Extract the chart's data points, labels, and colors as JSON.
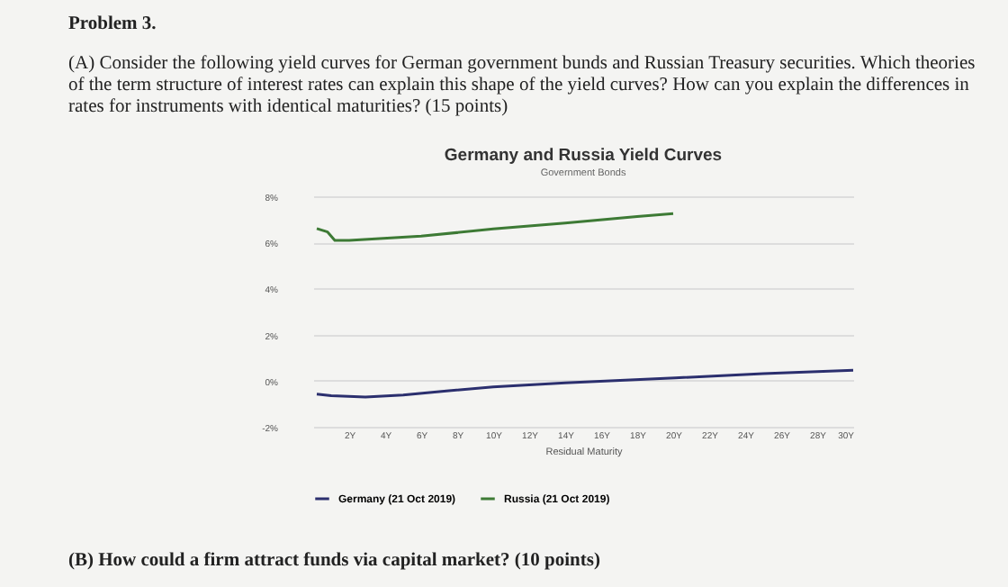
{
  "chart_data": {
    "type": "line",
    "title": "Germany and Russia Yield Curves",
    "subtitle": "Government Bonds",
    "xlabel": "Residual Maturity",
    "annotations": [
      "Problem 3.",
      "(A) Consider the following yield curves for German government bunds and Russian Treasury securities. Which theories of the term structure of interest rates can explain this shape of the yield curves? How can you explain the differences in rates for instruments with identical maturities? (15 points)",
      "(B) How could a firm attract funds via capital market? (10 points)"
    ],
    "series": [
      {
        "name": "Germany (21 Oct 2019)",
        "color": "#2b2f6e",
        "x": [
          0.2,
          1,
          2.9,
          5,
          7.4,
          10,
          14,
          20.1,
          25,
          30
        ],
        "values": [
          -0.58,
          -0.65,
          -0.71,
          -0.62,
          -0.45,
          -0.27,
          -0.1,
          0.12,
          0.3,
          0.45
        ]
      },
      {
        "name": "Russia (21 Oct 2019)",
        "color": "#3d7a35",
        "x": [
          0.2,
          0.8,
          1.2,
          2,
          6,
          10,
          14,
          18,
          20
        ],
        "values": [
          6.6,
          6.45,
          6.09,
          6.09,
          6.27,
          6.58,
          6.84,
          7.12,
          7.25
        ]
      }
    ],
    "xlim": [
      0,
      30
    ],
    "xticks": [
      {
        "value": 2,
        "label": "2Y"
      },
      {
        "value": 4,
        "label": "4Y"
      },
      {
        "value": 6,
        "label": "6Y"
      },
      {
        "value": 8,
        "label": "8Y"
      },
      {
        "value": 10,
        "label": "10Y"
      },
      {
        "value": 12,
        "label": "12Y"
      },
      {
        "value": 14,
        "label": "14Y"
      },
      {
        "value": 16,
        "label": "16Y"
      },
      {
        "value": 18,
        "label": "18Y"
      },
      {
        "value": 20,
        "label": "20Y"
      },
      {
        "value": 22,
        "label": "22Y"
      },
      {
        "value": 24,
        "label": "24Y"
      },
      {
        "value": 26,
        "label": "26Y"
      },
      {
        "value": 28,
        "label": "28Y"
      },
      {
        "value": 30,
        "label": "30Y"
      }
    ],
    "ylim": [
      -2,
      8
    ],
    "yticks": [
      {
        "value": -2,
        "label": "-2%"
      },
      {
        "value": 0,
        "label": "0%"
      },
      {
        "value": 2,
        "label": "2%"
      },
      {
        "value": 4,
        "label": "4%"
      },
      {
        "value": 6,
        "label": "6%"
      },
      {
        "value": 8,
        "label": "8%"
      }
    ],
    "grid": "y",
    "legend": "bottom",
    "line_style": "solid",
    "marker": "none"
  }
}
